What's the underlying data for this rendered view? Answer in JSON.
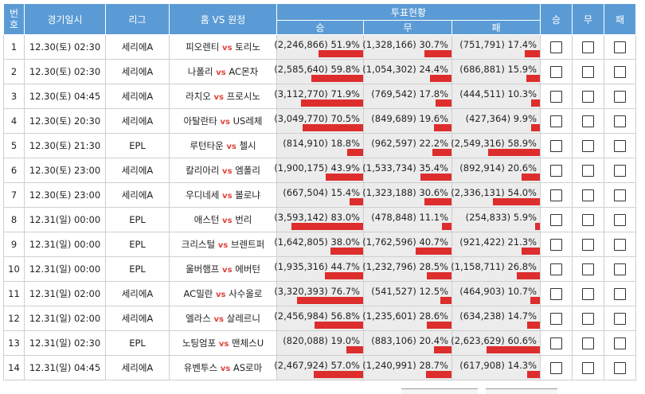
{
  "header": {
    "no": "번\n호",
    "datetime": "경기일시",
    "league": "리그",
    "match": "홈 VS 원정",
    "vote": "투표현황",
    "win": "승",
    "draw": "무",
    "lose": "패",
    "pick_win": "승",
    "pick_draw": "무",
    "pick_lose": "패",
    "vs": "vs"
  },
  "colors": {
    "header_bg": "#5b9bd5",
    "bar": "#dd2d2d",
    "bar_bg": "#ececec",
    "vs": "#e0433b"
  },
  "rows": [
    {
      "no": "1",
      "date": "12.30(토) 02:30",
      "league": "세리에A",
      "home": "피오렌티",
      "away": "토리노",
      "w": "(2,246,866) 51.9%",
      "wp": 51.9,
      "d": "(1,328,166) 30.7%",
      "dp": 30.7,
      "l": "(751,791) 17.4%",
      "lp": 17.4
    },
    {
      "no": "2",
      "date": "12.30(토) 02:30",
      "league": "세리에A",
      "home": "나폴리",
      "away": "AC몬차",
      "w": "(2,585,640) 59.8%",
      "wp": 59.8,
      "d": "(1,054,302) 24.4%",
      "dp": 24.4,
      "l": "(686,881) 15.9%",
      "lp": 15.9
    },
    {
      "no": "3",
      "date": "12.30(토) 04:45",
      "league": "세리에A",
      "home": "라치오",
      "away": "프로시노",
      "w": "(3,112,770) 71.9%",
      "wp": 71.9,
      "d": "(769,542) 17.8%",
      "dp": 17.8,
      "l": "(444,511) 10.3%",
      "lp": 10.3
    },
    {
      "no": "4",
      "date": "12.30(토) 20:30",
      "league": "세리에A",
      "home": "아탈란타",
      "away": "US레체",
      "w": "(3,049,770) 70.5%",
      "wp": 70.5,
      "d": "(849,689) 19.6%",
      "dp": 19.6,
      "l": "(427,364) 9.9%",
      "lp": 9.9
    },
    {
      "no": "5",
      "date": "12.30(토) 21:30",
      "league": "EPL",
      "home": "루턴타운",
      "away": "첼시",
      "w": "(814,910) 18.8%",
      "wp": 18.8,
      "d": "(962,597) 22.2%",
      "dp": 22.2,
      "l": "(2,549,316) 58.9%",
      "lp": 58.9
    },
    {
      "no": "6",
      "date": "12.30(토) 23:00",
      "league": "세리에A",
      "home": "칼리아리",
      "away": "엠폴리",
      "w": "(1,900,175) 43.9%",
      "wp": 43.9,
      "d": "(1,533,734) 35.4%",
      "dp": 35.4,
      "l": "(892,914) 20.6%",
      "lp": 20.6
    },
    {
      "no": "7",
      "date": "12.30(토) 23:00",
      "league": "세리에A",
      "home": "우디네세",
      "away": "볼로냐",
      "w": "(667,504) 15.4%",
      "wp": 15.4,
      "d": "(1,323,188) 30.6%",
      "dp": 30.6,
      "l": "(2,336,131) 54.0%",
      "lp": 54.0
    },
    {
      "no": "8",
      "date": "12.31(일) 00:00",
      "league": "EPL",
      "home": "애스턴",
      "away": "번리",
      "w": "(3,593,142) 83.0%",
      "wp": 83.0,
      "d": "(478,848) 11.1%",
      "dp": 11.1,
      "l": "(254,833) 5.9%",
      "lp": 5.9
    },
    {
      "no": "9",
      "date": "12.31(일) 00:00",
      "league": "EPL",
      "home": "크리스털",
      "away": "브렌트퍼",
      "w": "(1,642,805) 38.0%",
      "wp": 38.0,
      "d": "(1,762,596) 40.7%",
      "dp": 40.7,
      "l": "(921,422) 21.3%",
      "lp": 21.3
    },
    {
      "no": "10",
      "date": "12.31(일) 00:00",
      "league": "EPL",
      "home": "울버햄프",
      "away": "에버턴",
      "w": "(1,935,316) 44.7%",
      "wp": 44.7,
      "d": "(1,232,796) 28.5%",
      "dp": 28.5,
      "l": "(1,158,711) 26.8%",
      "lp": 26.8
    },
    {
      "no": "11",
      "date": "12.31(일) 02:00",
      "league": "세리에A",
      "home": "AC밀란",
      "away": "사수올로",
      "w": "(3,320,393) 76.7%",
      "wp": 76.7,
      "d": "(541,527) 12.5%",
      "dp": 12.5,
      "l": "(464,903) 10.7%",
      "lp": 10.7
    },
    {
      "no": "12",
      "date": "12.31(일) 02:00",
      "league": "세리에A",
      "home": "엘라스",
      "away": "살레르니",
      "w": "(2,456,984) 56.8%",
      "wp": 56.8,
      "d": "(1,235,601) 28.6%",
      "dp": 28.6,
      "l": "(634,238) 14.7%",
      "lp": 14.7
    },
    {
      "no": "13",
      "date": "12.31(일) 02:30",
      "league": "EPL",
      "home": "노팅엄포",
      "away": "맨체스U",
      "w": "(820,088) 19.0%",
      "wp": 19.0,
      "d": "(883,106) 20.4%",
      "dp": 20.4,
      "l": "(2,623,629) 60.6%",
      "lp": 60.6
    },
    {
      "no": "14",
      "date": "12.31(일) 04:45",
      "league": "세리에A",
      "home": "유벤투스",
      "away": "AS로마",
      "w": "(2,467,924) 57.0%",
      "wp": 57.0,
      "d": "(1,240,991) 28.7%",
      "dp": 28.7,
      "l": "(617,908) 14.3%",
      "lp": 14.3
    }
  ]
}
